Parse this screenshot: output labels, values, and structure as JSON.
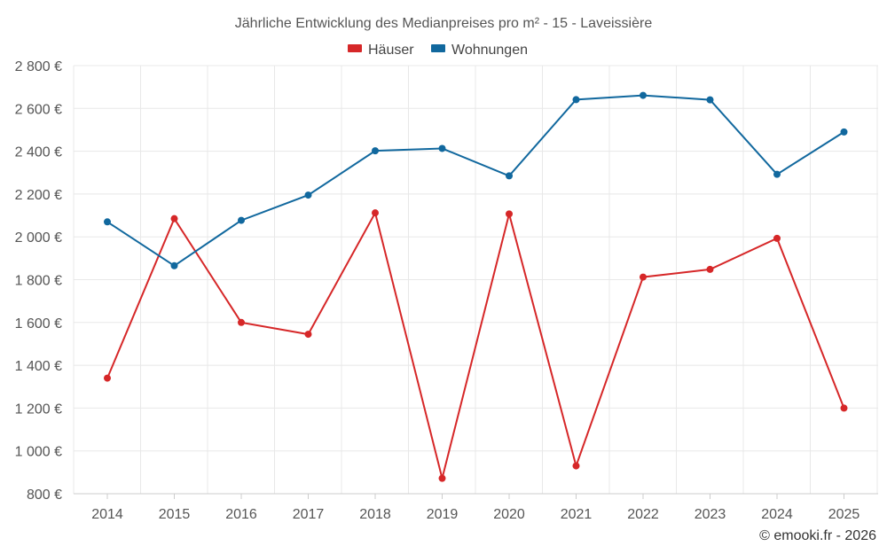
{
  "chart_data": {
    "type": "line",
    "title": "Jährliche Entwicklung des Medianpreises pro m² - 15 - Laveissière",
    "categories": [
      "2014",
      "2015",
      "2016",
      "2017",
      "2018",
      "2019",
      "2020",
      "2021",
      "2022",
      "2023",
      "2024",
      "2025"
    ],
    "series": [
      {
        "name": "Häuser",
        "color": "#d62728",
        "values": [
          1340,
          2085,
          1600,
          1545,
          2112,
          872,
          2107,
          930,
          1812,
          1848,
          1993,
          1200
        ]
      },
      {
        "name": "Wohnungen",
        "color": "#11689e",
        "values": [
          2070,
          1865,
          2077,
          2195,
          2402,
          2413,
          2285,
          2641,
          2661,
          2640,
          2292,
          2490
        ]
      }
    ],
    "ylim": [
      800,
      2800
    ],
    "yticks": [
      800,
      1000,
      1200,
      1400,
      1600,
      1800,
      2000,
      2200,
      2400,
      2600,
      2800
    ],
    "ytick_labels": [
      "800 €",
      "1 000 €",
      "1 200 €",
      "1 400 €",
      "1 600 €",
      "1 800 €",
      "2 000 €",
      "2 200 €",
      "2 400 €",
      "2 600 €",
      "2 800 €"
    ],
    "xlabel": "",
    "ylabel": "",
    "grid": true,
    "legend_position": "top-center"
  },
  "credit": "© emooki.fr - 2026"
}
